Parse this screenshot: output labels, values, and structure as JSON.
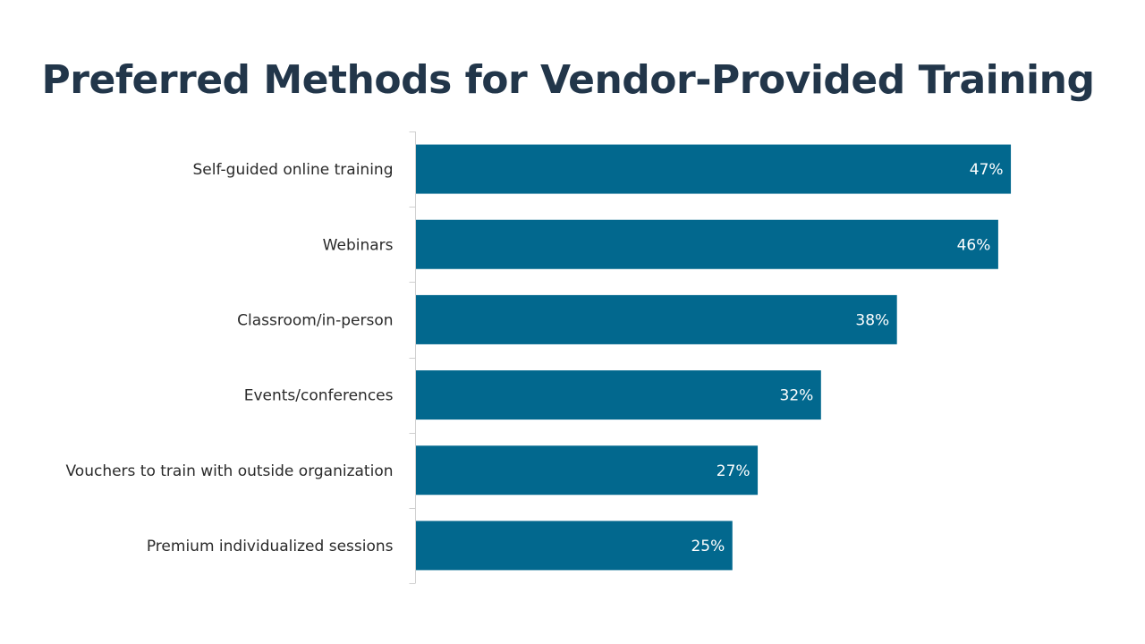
{
  "colors": {
    "bar": "#02688e",
    "title": "#22364a",
    "axis": "#d0d0d0"
  },
  "chart_data": {
    "type": "bar",
    "orientation": "horizontal",
    "title": "Preferred Methods for Vendor-Provided Training",
    "xlabel": "",
    "ylabel": "",
    "categories": [
      "Self-guided online training",
      "Webinars",
      "Classroom/in-person",
      "Events/conferences",
      "Vouchers to train with outside organization",
      "Premium individualized sessions"
    ],
    "values": [
      47,
      46,
      38,
      32,
      27,
      25
    ],
    "value_labels": [
      "47%",
      "46%",
      "38%",
      "32%",
      "27%",
      "25%"
    ],
    "value_unit": "%",
    "xlim": [
      0,
      50
    ],
    "grid": false,
    "legend": "none"
  }
}
